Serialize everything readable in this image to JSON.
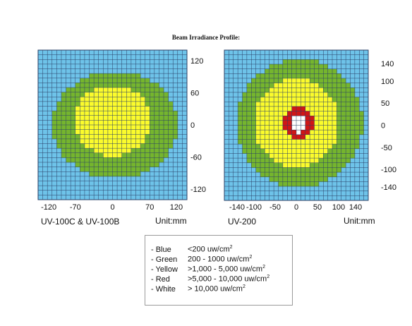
{
  "title": "Beam Irradiance Profile:",
  "colors": {
    "blue": "#6ec3e9",
    "green": "#75b52e",
    "yellow": "#fbfb2c",
    "red": "#d01616",
    "white": "#ffffff",
    "gridline": "#2a3f66"
  },
  "legend": [
    {
      "name": "- Blue",
      "range": "<200 uw/cm",
      "sup": "2"
    },
    {
      "name": "- Green",
      "range": "200 - 1000 uw/cm",
      "sup": "2"
    },
    {
      "name": "- Yellow",
      "range": ">1,000 - 5,000  uw/cm",
      "sup": "2"
    },
    {
      "name": "- Red",
      "range": ">5,000 - 10,000 uw/cm",
      "sup": "2"
    },
    {
      "name": "- White",
      "range": "> 10,000  uw/cm",
      "sup": "2"
    }
  ],
  "chart_data": [
    {
      "type": "heatmap",
      "model_label": "UV-100C & UV-100B",
      "unit_label": "Unit:mm",
      "xlim": [
        -140,
        140
      ],
      "ylim": [
        -140,
        140
      ],
      "x_ticks": [
        -120,
        -70,
        0,
        70,
        120
      ],
      "y_ticks": [
        120,
        60,
        0,
        -60,
        -120
      ],
      "zones": [
        {
          "level": "Green",
          "color": "green",
          "rx": 118,
          "ry": 100,
          "cx": 5,
          "cy": 0
        },
        {
          "level": "Yellow",
          "color": "yellow",
          "rx": 73,
          "ry": 66,
          "cx": 0,
          "cy": 8
        }
      ]
    },
    {
      "type": "heatmap",
      "model_label": "UV-200",
      "unit_label": "Unit:mm",
      "xlim": [
        -170,
        170
      ],
      "ylim": [
        -170,
        170
      ],
      "x_ticks": [
        -140,
        -100,
        -50,
        0,
        50,
        100,
        140
      ],
      "y_ticks": [
        140,
        100,
        50,
        0,
        -50,
        -100,
        -140
      ],
      "zones": [
        {
          "level": "Green",
          "color": "green",
          "rx": 148,
          "ry": 145,
          "cx": 8,
          "cy": 5
        },
        {
          "level": "Yellow",
          "color": "yellow",
          "rx": 100,
          "ry": 100,
          "cx": 0,
          "cy": 5
        },
        {
          "level": "Red",
          "color": "red",
          "rx": 34,
          "ry": 35,
          "cx": 5,
          "cy": 5
        },
        {
          "level": "White",
          "color": "white",
          "rx": 18,
          "ry": 20,
          "cx": 5,
          "cy": 3
        }
      ]
    }
  ]
}
